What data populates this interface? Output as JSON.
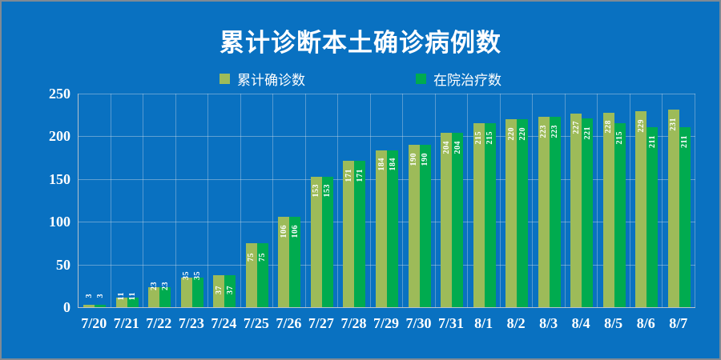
{
  "chart_data": {
    "type": "bar",
    "title": "累计诊断本土确诊病例数",
    "categories": [
      "7/20",
      "7/21",
      "7/22",
      "7/23",
      "7/24",
      "7/25",
      "7/26",
      "7/27",
      "7/28",
      "7/29",
      "7/30",
      "7/31",
      "8/1",
      "8/2",
      "8/3",
      "8/4",
      "8/5",
      "8/6",
      "8/7"
    ],
    "series": [
      {
        "name": "累计确诊数",
        "color": "#9dbb59",
        "values": [
          3,
          11,
          23,
          35,
          37,
          75,
          106,
          153,
          171,
          184,
          190,
          204,
          215,
          220,
          223,
          227,
          228,
          229,
          231
        ]
      },
      {
        "name": "在院治疗数",
        "color": "#00ab4f",
        "values": [
          3,
          11,
          23,
          35,
          37,
          75,
          106,
          153,
          171,
          184,
          190,
          204,
          215,
          220,
          223,
          221,
          215,
          211,
          211
        ]
      }
    ],
    "xlabel": "",
    "ylabel": "",
    "ylim": [
      0,
      250
    ],
    "yticks": [
      0,
      50,
      100,
      150,
      200,
      250
    ],
    "grid": true,
    "legend_position": "top",
    "data_labels": true,
    "colors": {
      "background": "#0971c1",
      "text": "#ffffff",
      "gridline": "rgba(205,218,230,0.45)",
      "axis_line": "#b9c4cc"
    }
  }
}
